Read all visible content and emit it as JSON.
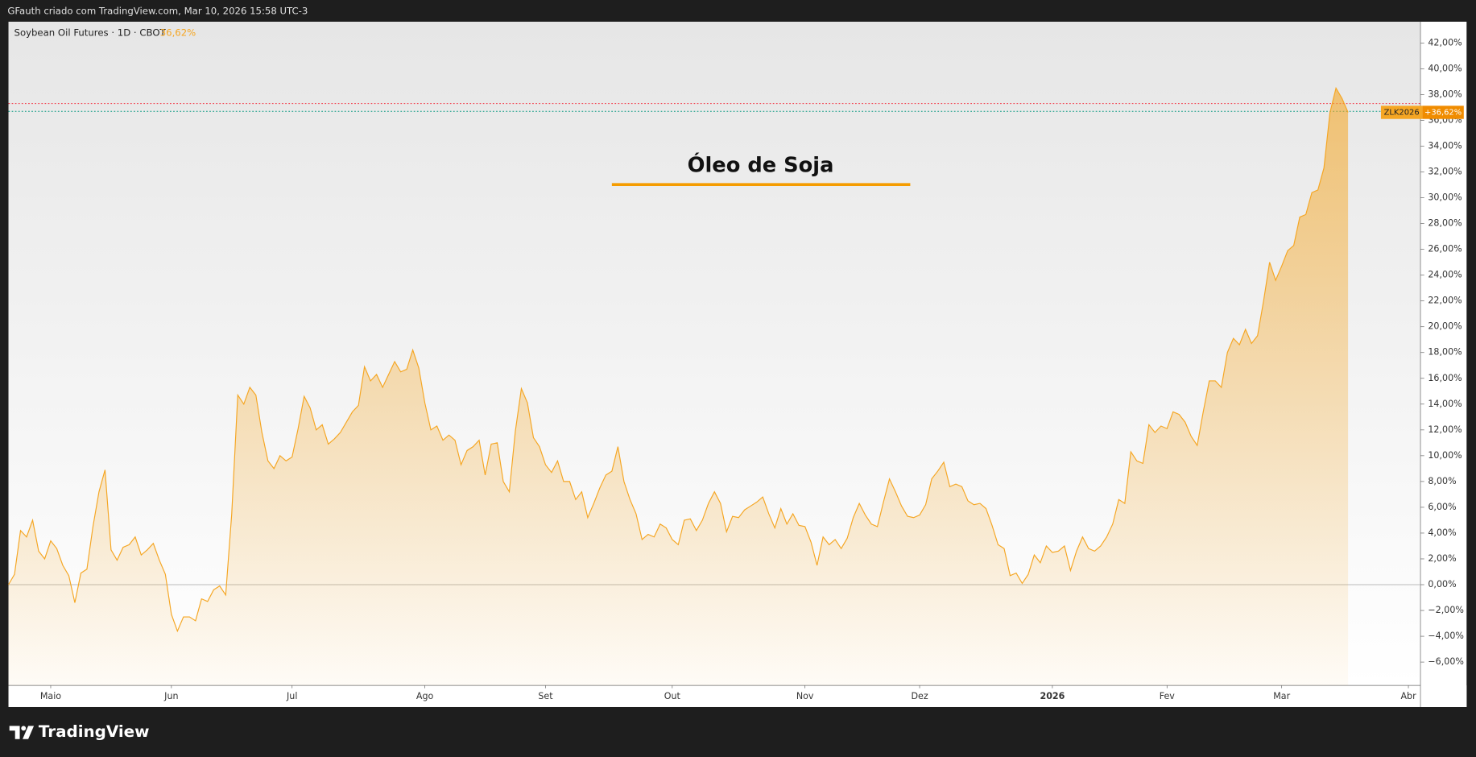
{
  "header": "GFauth criado com TradingView.com, Mar 10, 2026 15:58 UTC-3",
  "footer": {
    "brand": "TradingView"
  },
  "chart_data": {
    "type": "area",
    "title": "Óleo de Soja",
    "legend": {
      "name": "Soybean Oil Futures · 1D · CBOT",
      "value_label": "36,62%"
    },
    "symbol": "ZLK2026",
    "last_value_label": "+36,62%",
    "series": [
      {
        "name": "Soybean Oil Futures",
        "color": "#f5a623",
        "values": [
          0,
          0.8,
          4.2,
          3.7,
          5.0,
          2.6,
          2.0,
          3.4,
          2.8,
          1.5,
          0.7,
          -1.4,
          0.9,
          1.2,
          4.5,
          7.2,
          8.9,
          2.7,
          1.9,
          2.9,
          3.1,
          3.7,
          2.3,
          2.7,
          3.2,
          1.9,
          0.8,
          -2.3,
          -3.6,
          -2.5,
          -2.5,
          -2.8,
          -1.1,
          -1.3,
          -0.4,
          -0.1,
          -0.8,
          5.5,
          14.7,
          14.0,
          15.3,
          14.7,
          11.8,
          9.6,
          9.0,
          10.0,
          9.6,
          9.9,
          12.1,
          14.6,
          13.7,
          12.0,
          12.4,
          10.9,
          11.3,
          11.8,
          12.6,
          13.4,
          13.9,
          16.9,
          15.8,
          16.3,
          15.3,
          16.3,
          17.3,
          16.5,
          16.7,
          18.2,
          16.8,
          14.1,
          12.0,
          12.3,
          11.2,
          11.6,
          11.2,
          9.3,
          10.4,
          10.7,
          11.2,
          8.5,
          10.9,
          11.0,
          8.0,
          7.2,
          11.9,
          15.2,
          14.1,
          11.4,
          10.7,
          9.3,
          8.7,
          9.6,
          8.0,
          8.0,
          6.6,
          7.2,
          5.2,
          6.3,
          7.5,
          8.5,
          8.8,
          10.7,
          8.0,
          6.6,
          5.5,
          3.5,
          3.9,
          3.7,
          4.7,
          4.4,
          3.5,
          3.1,
          5.0,
          5.1,
          4.2,
          5.0,
          6.3,
          7.2,
          6.3,
          4.1,
          5.3,
          5.2,
          5.8,
          6.1,
          6.4,
          6.8,
          5.5,
          4.4,
          5.9,
          4.7,
          5.5,
          4.6,
          4.5,
          3.3,
          1.5,
          3.7,
          3.1,
          3.5,
          2.8,
          3.6,
          5.2,
          6.3,
          5.4,
          4.7,
          4.5,
          6.4,
          8.2,
          7.2,
          6.1,
          5.3,
          5.2,
          5.4,
          6.2,
          8.2,
          8.8,
          9.5,
          7.6,
          7.8,
          7.6,
          6.5,
          6.2,
          6.3,
          5.9,
          4.6,
          3.1,
          2.8,
          0.7,
          0.9,
          0.1,
          0.8,
          2.3,
          1.7,
          3.0,
          2.5,
          2.6,
          3.0,
          1.1,
          2.6,
          3.7,
          2.8,
          2.6,
          3.0,
          3.7,
          4.7,
          6.6,
          6.3,
          10.3,
          9.6,
          9.4,
          12.4,
          11.8,
          12.3,
          12.1,
          13.4,
          13.2,
          12.6,
          11.5,
          10.8,
          13.4,
          15.8,
          15.8,
          15.3,
          18.0,
          19.1,
          18.6,
          19.8,
          18.7,
          19.3,
          22.0,
          25.0,
          23.6,
          24.7,
          25.9,
          26.3,
          28.5,
          28.7,
          30.4,
          30.6,
          32.3,
          36.6,
          38.5,
          37.7,
          36.62
        ]
      }
    ],
    "reference_lines": [
      {
        "value": 37.3,
        "color": "#f23645"
      },
      {
        "value": 36.7,
        "color": "#089981"
      }
    ],
    "xlim": [
      0,
      234
    ],
    "xticks": [
      {
        "value": 7,
        "label": "Maio"
      },
      {
        "value": 27,
        "label": "Jun"
      },
      {
        "value": 47,
        "label": "Jul"
      },
      {
        "value": 69,
        "label": "Ago"
      },
      {
        "value": 89,
        "label": "Set"
      },
      {
        "value": 110,
        "label": "Out"
      },
      {
        "value": 132,
        "label": "Nov"
      },
      {
        "value": 151,
        "label": "Dez"
      },
      {
        "value": 173,
        "label": "2026"
      },
      {
        "value": 192,
        "label": "Fev"
      },
      {
        "value": 211,
        "label": "Mar"
      },
      {
        "value": 232,
        "label": "Abr"
      }
    ],
    "ylim": [
      -7.81,
      43.65
    ],
    "yticks": [
      {
        "value": -6,
        "label": "−6,00%"
      },
      {
        "value": -4,
        "label": "−4,00%"
      },
      {
        "value": -2,
        "label": "−2,00%"
      },
      {
        "value": 0,
        "label": "0,00%"
      },
      {
        "value": 2,
        "label": "2,00%"
      },
      {
        "value": 4,
        "label": "4,00%"
      },
      {
        "value": 6,
        "label": "6,00%"
      },
      {
        "value": 8,
        "label": "8,00%"
      },
      {
        "value": 10,
        "label": "10,00%"
      },
      {
        "value": 12,
        "label": "12,00%"
      },
      {
        "value": 14,
        "label": "14,00%"
      },
      {
        "value": 16,
        "label": "16,00%"
      },
      {
        "value": 18,
        "label": "18,00%"
      },
      {
        "value": 20,
        "label": "20,00%"
      },
      {
        "value": 22,
        "label": "22,00%"
      },
      {
        "value": 24,
        "label": "24,00%"
      },
      {
        "value": 26,
        "label": "26,00%"
      },
      {
        "value": 28,
        "label": "28,00%"
      },
      {
        "value": 30,
        "label": "30,00%"
      },
      {
        "value": 32,
        "label": "32,00%"
      },
      {
        "value": 34,
        "label": "34,00%"
      },
      {
        "value": 36,
        "label": "36,00%"
      },
      {
        "value": 38,
        "label": "38,00%"
      },
      {
        "value": 40,
        "label": "40,00%"
      },
      {
        "value": 42,
        "label": "42,00%"
      }
    ]
  }
}
